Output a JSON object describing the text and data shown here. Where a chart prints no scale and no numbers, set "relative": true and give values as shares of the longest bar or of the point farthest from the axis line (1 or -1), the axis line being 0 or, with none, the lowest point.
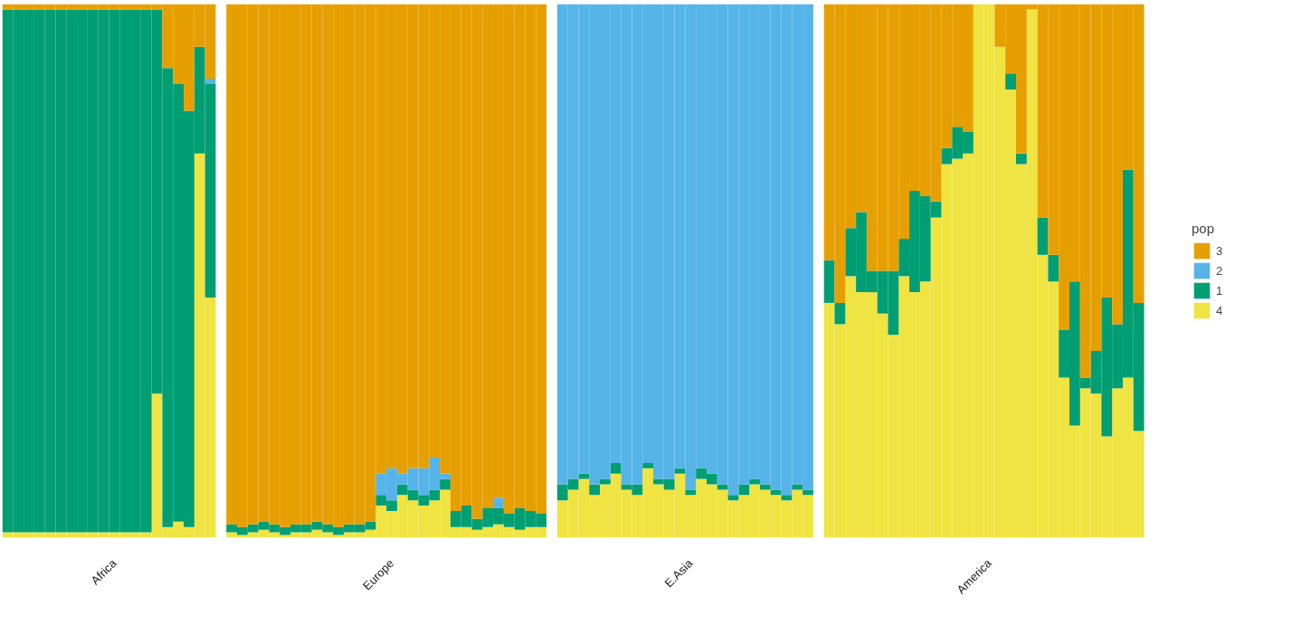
{
  "chart_data": {
    "type": "bar",
    "stacked": true,
    "relative": true,
    "legend": "right",
    "legend_title": "pop",
    "categories": [
      null,
      null,
      null,
      null,
      null,
      null,
      null,
      null,
      null,
      null,
      "Africa",
      null,
      null,
      null,
      null,
      null,
      null,
      null,
      null,
      null,
      null,
      null,
      null,
      null,
      null,
      null,
      null,
      null,
      null,
      null,
      null,
      null,
      null,
      null,
      null,
      null,
      "Europe",
      null,
      null,
      null,
      null,
      null,
      null,
      null,
      null,
      null,
      null,
      null,
      null,
      null,
      null,
      null,
      null,
      null,
      null,
      null,
      null,
      null,
      null,
      null,
      null,
      null,
      null,
      null,
      "E.Asia",
      null,
      null,
      null,
      null,
      null,
      null,
      null,
      null,
      null,
      null,
      null,
      null,
      null,
      null,
      null,
      null,
      null,
      null,
      null,
      null,
      null,
      null,
      null,
      null,
      null,
      null,
      null,
      "America",
      null,
      null,
      null,
      null,
      null,
      null,
      null,
      null,
      null,
      null,
      null,
      null,
      null,
      null
    ],
    "series": [
      {
        "name": "4",
        "color": "#f0e442",
        "values": [
          0.01,
          0.01,
          0.01,
          0.01,
          0.01,
          0.01,
          0.01,
          0.01,
          0.01,
          0.01,
          0.01,
          0.01,
          0.01,
          0.01,
          0.27,
          0.02,
          0.03,
          0.02,
          0.72,
          0.45,
          null,
          0.01,
          0.005,
          0.01,
          0.015,
          0.01,
          0.005,
          0.01,
          0.01,
          0.015,
          0.01,
          0.005,
          0.01,
          0.01,
          0.015,
          0.06,
          0.05,
          0.08,
          0.07,
          0.06,
          0.07,
          0.09,
          0.02,
          0.02,
          0.015,
          0.02,
          0.025,
          0.02,
          0.015,
          0.02,
          0.02,
          null,
          0.07,
          0.09,
          0.11,
          0.08,
          0.1,
          0.12,
          0.09,
          0.08,
          0.13,
          0.1,
          0.09,
          0.12,
          0.08,
          0.11,
          0.1,
          0.09,
          0.07,
          0.08,
          0.1,
          0.09,
          0.08,
          0.07,
          0.09,
          0.08,
          null,
          0.44,
          0.4,
          0.49,
          0.46,
          0.46,
          0.42,
          0.38,
          0.49,
          0.46,
          0.48,
          0.6,
          0.7,
          0.71,
          0.72,
          1.0,
          1.0,
          0.92,
          0.84,
          0.7,
          0.99,
          0.53,
          0.48,
          0.3,
          0.21,
          0.28,
          0.27,
          0.19,
          0.28,
          0.3,
          0.2
        ]
      },
      {
        "name": "1",
        "color": "#009e73",
        "values": [
          0.98,
          0.98,
          0.98,
          0.98,
          0.98,
          0.98,
          0.98,
          0.98,
          0.98,
          0.98,
          0.98,
          0.98,
          0.98,
          0.98,
          0.72,
          0.86,
          0.82,
          0.78,
          0.2,
          0.4,
          null,
          0.015,
          0.015,
          0.015,
          0.015,
          0.015,
          0.015,
          0.015,
          0.015,
          0.015,
          0.015,
          0.015,
          0.015,
          0.015,
          0.015,
          0.02,
          0.02,
          0.02,
          0.02,
          0.02,
          0.02,
          0.02,
          0.03,
          0.04,
          0.02,
          0.035,
          0.03,
          0.025,
          0.04,
          0.03,
          0.025,
          null,
          0.03,
          0.02,
          0.01,
          0.02,
          0.01,
          0.02,
          0.01,
          0.02,
          0.01,
          0.01,
          0.02,
          0.01,
          0.01,
          0.02,
          0.02,
          0.01,
          0.01,
          0.02,
          0.01,
          0.01,
          0.01,
          0.01,
          0.01,
          0.01,
          null,
          0.08,
          0.04,
          0.09,
          0.15,
          0.04,
          0.08,
          0.12,
          0.07,
          0.19,
          0.16,
          0.03,
          0.03,
          0.06,
          0.04,
          0,
          0,
          0,
          0.03,
          0.02,
          0,
          0.07,
          0.05,
          0.09,
          0.27,
          0.02,
          0.08,
          0.26,
          0.12,
          0.39,
          0.24
        ]
      },
      {
        "name": "2",
        "color": "#56b4e9",
        "values": [
          0,
          0,
          0,
          0,
          0,
          0,
          0,
          0,
          0,
          0,
          0,
          0,
          0,
          0,
          0,
          0,
          0,
          0,
          0,
          0.01,
          null,
          0,
          0,
          0,
          0,
          0,
          0,
          0,
          0,
          0,
          0,
          0,
          0,
          0,
          0,
          0.04,
          0.06,
          0.02,
          0.04,
          0.05,
          0.06,
          0.01,
          0,
          0,
          0,
          0,
          0.02,
          0,
          0,
          0,
          0,
          null,
          0.9,
          0.89,
          0.88,
          0.9,
          0.89,
          0.86,
          0.9,
          0.9,
          0.86,
          0.89,
          0.89,
          0.87,
          0.91,
          0.87,
          0.88,
          0.9,
          0.92,
          0.9,
          0.89,
          0.9,
          0.91,
          0.92,
          0.9,
          0.91,
          null,
          0,
          0,
          0,
          0,
          0,
          0,
          0,
          0,
          0,
          0,
          0,
          0,
          0,
          0,
          0,
          0,
          0,
          0,
          0,
          0,
          0,
          0,
          0,
          0,
          0,
          0,
          0,
          0,
          0,
          0
        ]
      },
      {
        "name": "3",
        "color": "#e69f00",
        "values": [
          0.01,
          0.01,
          0.01,
          0.01,
          0.01,
          0.01,
          0.01,
          0.01,
          0.01,
          0.01,
          0.01,
          0.01,
          0.01,
          0.01,
          0.01,
          0.12,
          0.15,
          0.2,
          0.08,
          0.14,
          null,
          0.975,
          0.98,
          0.975,
          0.97,
          0.975,
          0.98,
          0.975,
          0.975,
          0.97,
          0.975,
          0.98,
          0.975,
          0.975,
          0.97,
          0.88,
          0.87,
          0.88,
          0.87,
          0.87,
          0.85,
          0.88,
          0.95,
          0.94,
          0.965,
          0.945,
          0.925,
          0.955,
          0.945,
          0.95,
          0.955,
          null,
          0,
          0,
          0,
          0,
          0,
          0,
          0,
          0,
          0,
          0,
          0,
          0,
          0,
          0,
          0,
          0,
          0,
          0,
          0,
          0,
          0,
          0,
          0,
          0,
          null,
          0.48,
          0.56,
          0.42,
          0.39,
          0.5,
          0.5,
          0.5,
          0.44,
          0.35,
          0.36,
          0.37,
          0.27,
          0.23,
          0.24,
          0,
          0,
          0.08,
          0.13,
          0.28,
          0.01,
          0.4,
          0.47,
          0.61,
          0.52,
          0.7,
          0.65,
          0.55,
          0.6,
          0.31,
          0.56
        ]
      }
    ]
  }
}
